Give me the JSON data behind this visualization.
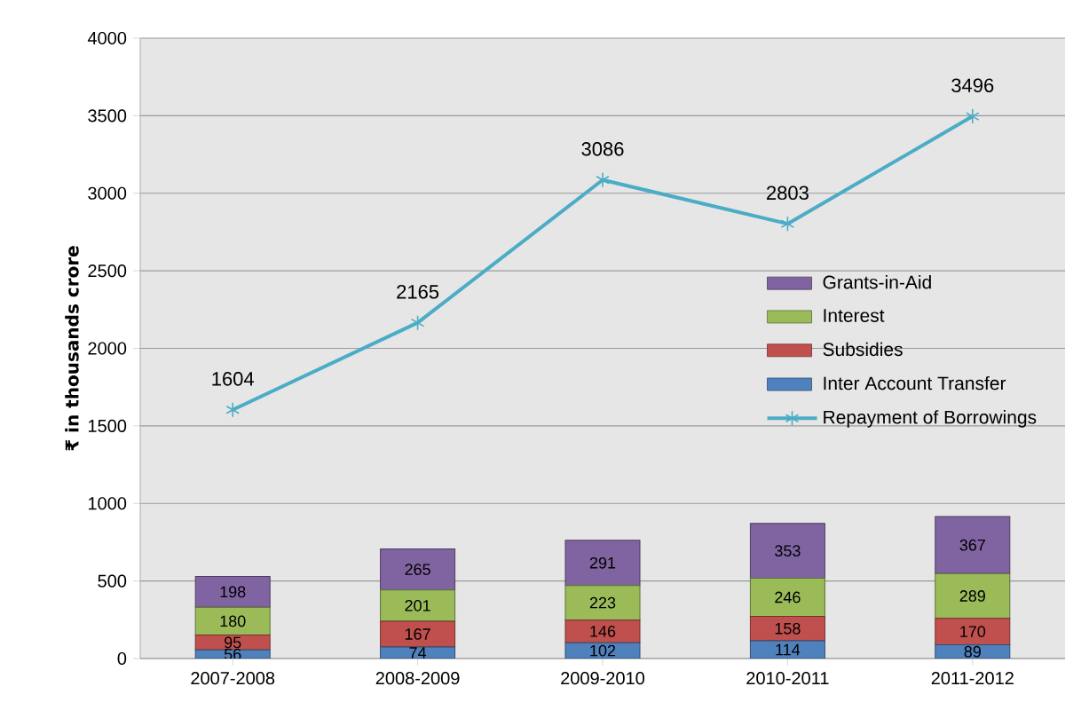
{
  "chart_data": {
    "type": "bar",
    "stacked": true,
    "ylabel": "₹ in thousands crore",
    "categories": [
      "2007-2008",
      "2008-2009",
      "2009-2010",
      "2010-2011",
      "2011-2012"
    ],
    "series": [
      {
        "name": "Inter Account Transfer",
        "color": "#4f81bd",
        "values": [
          56,
          74,
          102,
          114,
          89
        ]
      },
      {
        "name": "Subsidies",
        "color": "#c0504d",
        "values": [
          95,
          167,
          146,
          158,
          170
        ]
      },
      {
        "name": "Interest",
        "color": "#9bbb59",
        "values": [
          180,
          201,
          223,
          246,
          289
        ]
      },
      {
        "name": "Grants-in-Aid",
        "color": "#8064a2",
        "values": [
          198,
          265,
          291,
          353,
          367
        ]
      },
      {
        "name": "Repayment of Borrowings",
        "type": "line",
        "color": "#4bacc6",
        "marker": "cross",
        "values": [
          1604,
          2165,
          3086,
          2803,
          3496
        ]
      }
    ],
    "ylim": [
      0,
      4000
    ],
    "yticks": [
      0,
      500,
      1000,
      1500,
      2000,
      2500,
      3000,
      3500,
      4000
    ],
    "grid": "y",
    "legend": "right",
    "data_labels": true
  }
}
